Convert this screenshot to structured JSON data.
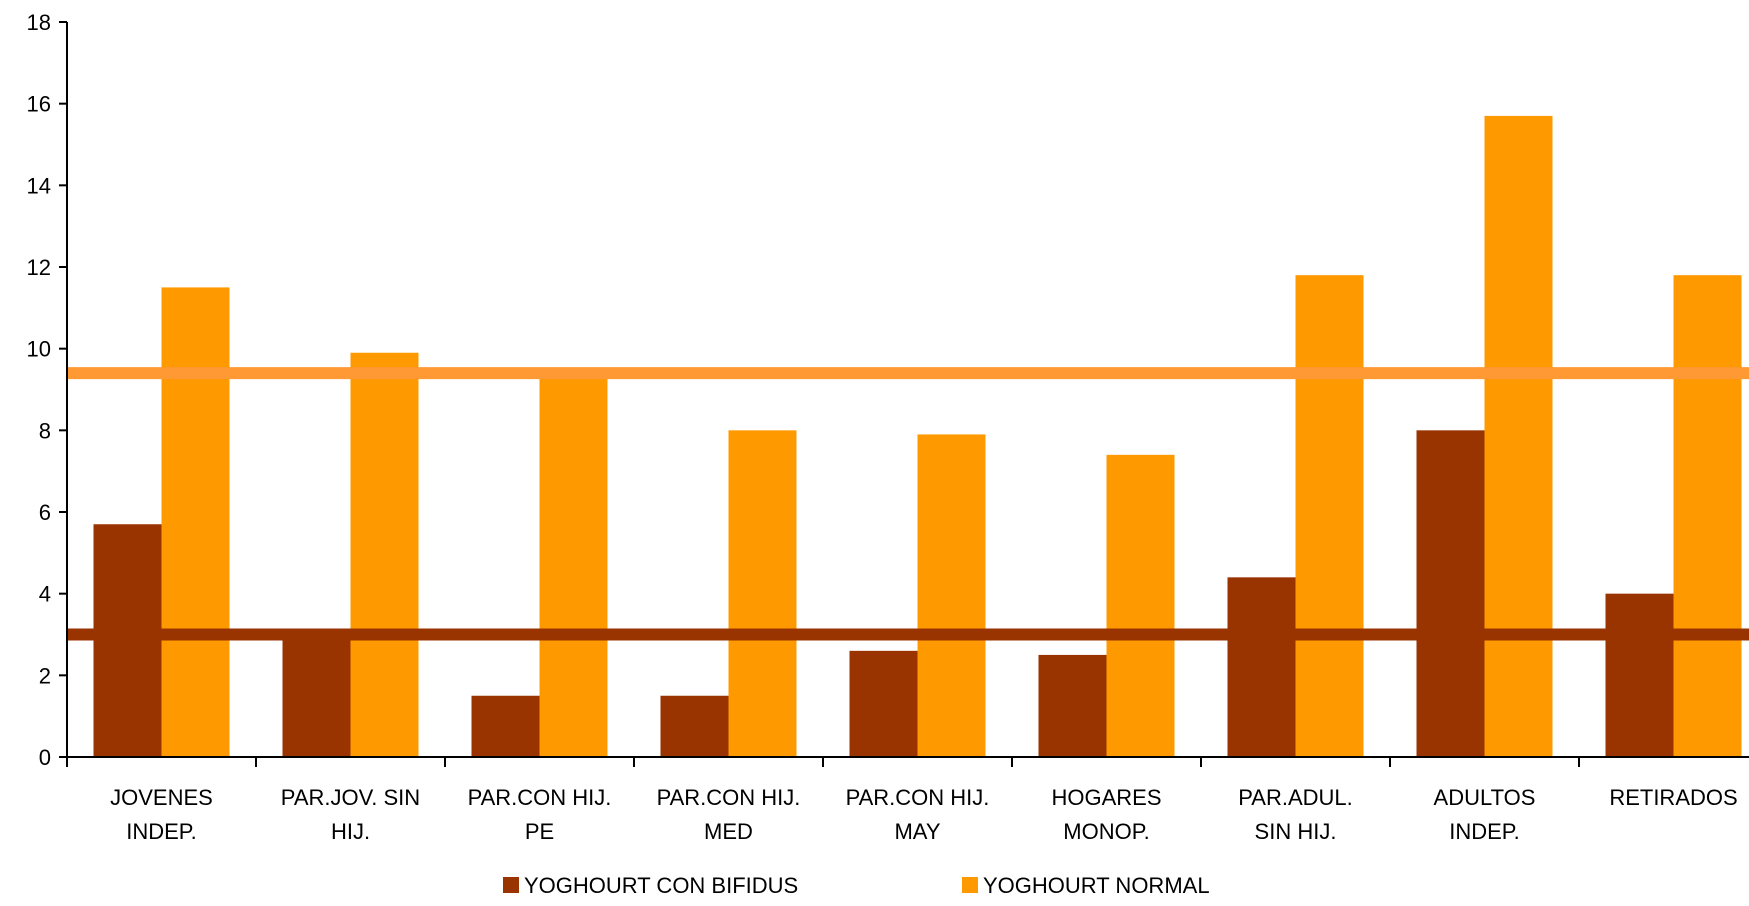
{
  "chart_data": {
    "type": "bar",
    "categories": [
      [
        "JOVENES",
        "INDEP."
      ],
      [
        "PAR.JOV. SIN",
        "HIJ."
      ],
      [
        "PAR.CON HIJ.",
        "PE"
      ],
      [
        "PAR.CON HIJ.",
        "MED"
      ],
      [
        "PAR.CON HIJ.",
        "MAY"
      ],
      [
        "HOGARES",
        "MONOP."
      ],
      [
        "PAR.ADUL.",
        "SIN HIJ."
      ],
      [
        "ADULTOS",
        "INDEP."
      ],
      [
        "RETIRADOS"
      ]
    ],
    "series": [
      {
        "name": "YOGHOURT CON BIFIDUS",
        "color": "#993300",
        "values": [
          5.7,
          3.1,
          1.5,
          1.5,
          2.6,
          2.5,
          4.4,
          8.0,
          4.0
        ]
      },
      {
        "name": "YOGHOURT NORMAL",
        "color": "#FF9900",
        "values": [
          11.5,
          9.9,
          9.4,
          8.0,
          7.9,
          7.4,
          11.8,
          15.7,
          11.8
        ]
      }
    ],
    "reference_lines": [
      {
        "value": 9.4,
        "color": "#FF9933"
      },
      {
        "value": 3.0,
        "color": "#993300"
      }
    ],
    "ylim": [
      0,
      18
    ],
    "yticks": [
      "0",
      "2",
      "4",
      "6",
      "8",
      "10",
      "12",
      "14",
      "16",
      "18"
    ],
    "ytick_values": [
      0,
      2,
      4,
      6,
      8,
      10,
      12,
      14,
      16,
      18
    ],
    "title": "",
    "xlabel": "",
    "ylabel": "",
    "grid": false,
    "legend_position": "bottom"
  }
}
